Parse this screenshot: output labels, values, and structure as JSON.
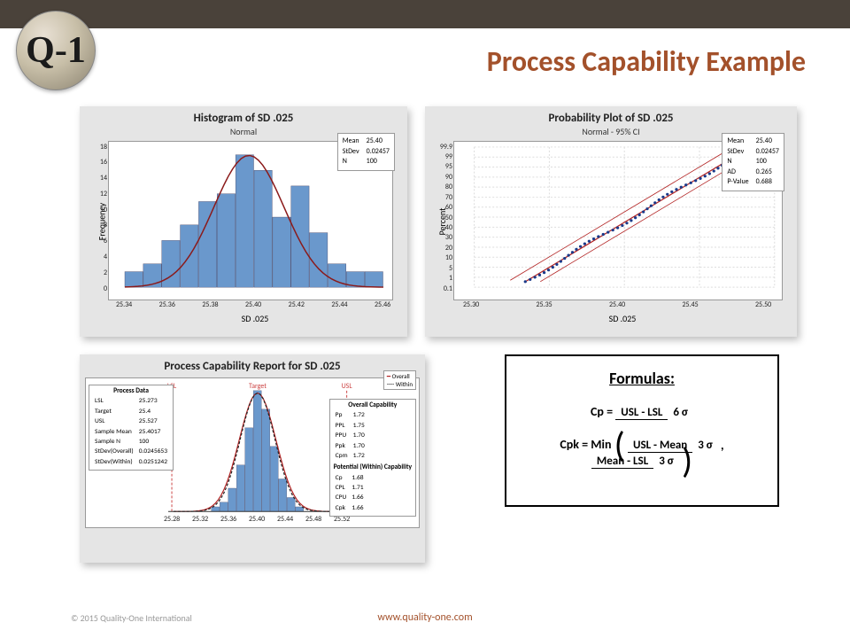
{
  "title": "Process Capability Example",
  "logo_text": "Q-1",
  "footer_url": "www.quality-one.com",
  "copyright": "© 2015 Quality-One International",
  "histogram": {
    "title": "Histogram of SD .025",
    "subtitle": "Normal",
    "xlabel": "SD .025",
    "ylabel": "Frequency",
    "xticks": [
      "25.34",
      "25.36",
      "25.38",
      "25.40",
      "25.42",
      "25.44",
      "25.46"
    ],
    "yticks": [
      "0",
      "2",
      "4",
      "6",
      "8",
      "10",
      "12",
      "14",
      "16",
      "18"
    ],
    "bar_color": "#6a98cc",
    "curve_color": "#8b1a1a",
    "bars": [
      2,
      3,
      6,
      8,
      11,
      12,
      17,
      15,
      9,
      13,
      7,
      3,
      2,
      2
    ],
    "ymax": 18,
    "stats": [
      [
        "Mean",
        "25.40"
      ],
      [
        "StDev",
        "0.02457"
      ],
      [
        "N",
        "100"
      ]
    ]
  },
  "probplot": {
    "title": "Probability Plot of SD .025",
    "subtitle": "Normal - 95% CI",
    "xlabel": "SD .025",
    "ylabel": "Percent",
    "xticks": [
      "25.30",
      "25.35",
      "25.40",
      "25.45",
      "25.50"
    ],
    "yticks": [
      "0.1",
      "1",
      "5",
      "10",
      "20",
      "30",
      "40",
      "50",
      "60",
      "70",
      "80",
      "90",
      "95",
      "99",
      "99.9"
    ],
    "point_color": "#1a3a8a",
    "line_color": "#b22222",
    "stats": [
      [
        "Mean",
        "25.40"
      ],
      [
        "StDev",
        "0.02457"
      ],
      [
        "N",
        "100"
      ],
      [
        "AD",
        "0.265"
      ],
      [
        "P-Value",
        "0.688"
      ]
    ]
  },
  "capability": {
    "title": "Process Capability Report for SD .025",
    "lsl_label": "LSL",
    "target_label": "Target",
    "usl_label": "USL",
    "xticks": [
      "25.28",
      "25.32",
      "25.36",
      "25.40",
      "25.44",
      "25.48",
      "25.52"
    ],
    "bar_color": "#6a98cc",
    "overall_color": "#b22222",
    "within_color": "#222",
    "legend": [
      [
        "—",
        "Overall"
      ],
      [
        "- -",
        "Within"
      ]
    ],
    "process_data_title": "Process Data",
    "process_data": [
      [
        "LSL",
        "25.273"
      ],
      [
        "Target",
        "25.4"
      ],
      [
        "USL",
        "25.527"
      ],
      [
        "Sample Mean",
        "25.4017"
      ],
      [
        "Sample N",
        "100"
      ],
      [
        "StDev(Overall)",
        "0.0245653"
      ],
      [
        "StDev(Within)",
        "0.0251242"
      ]
    ],
    "overall_cap_title": "Overall Capability",
    "overall_cap": [
      [
        "Pp",
        "1.72"
      ],
      [
        "PPL",
        "1.75"
      ],
      [
        "PPU",
        "1.70"
      ],
      [
        "Ppk",
        "1.70"
      ],
      [
        "Cpm",
        "1.72"
      ]
    ],
    "potential_cap_title": "Potential (Within) Capability",
    "potential_cap": [
      [
        "Cp",
        "1.68"
      ],
      [
        "CPL",
        "1.71"
      ],
      [
        "CPU",
        "1.66"
      ],
      [
        "Cpk",
        "1.66"
      ]
    ]
  },
  "formulas": {
    "heading": "Formulas:",
    "cp": {
      "lhs": "Cp =",
      "num": "USL - LSL",
      "den": "6 σ"
    },
    "cpk": {
      "lhs": "Cpk =  Min",
      "n1": "USL - Mean",
      "d1": "3 σ",
      "sep": ",",
      "n2": "Mean - LSL",
      "d2": "3 σ"
    }
  }
}
